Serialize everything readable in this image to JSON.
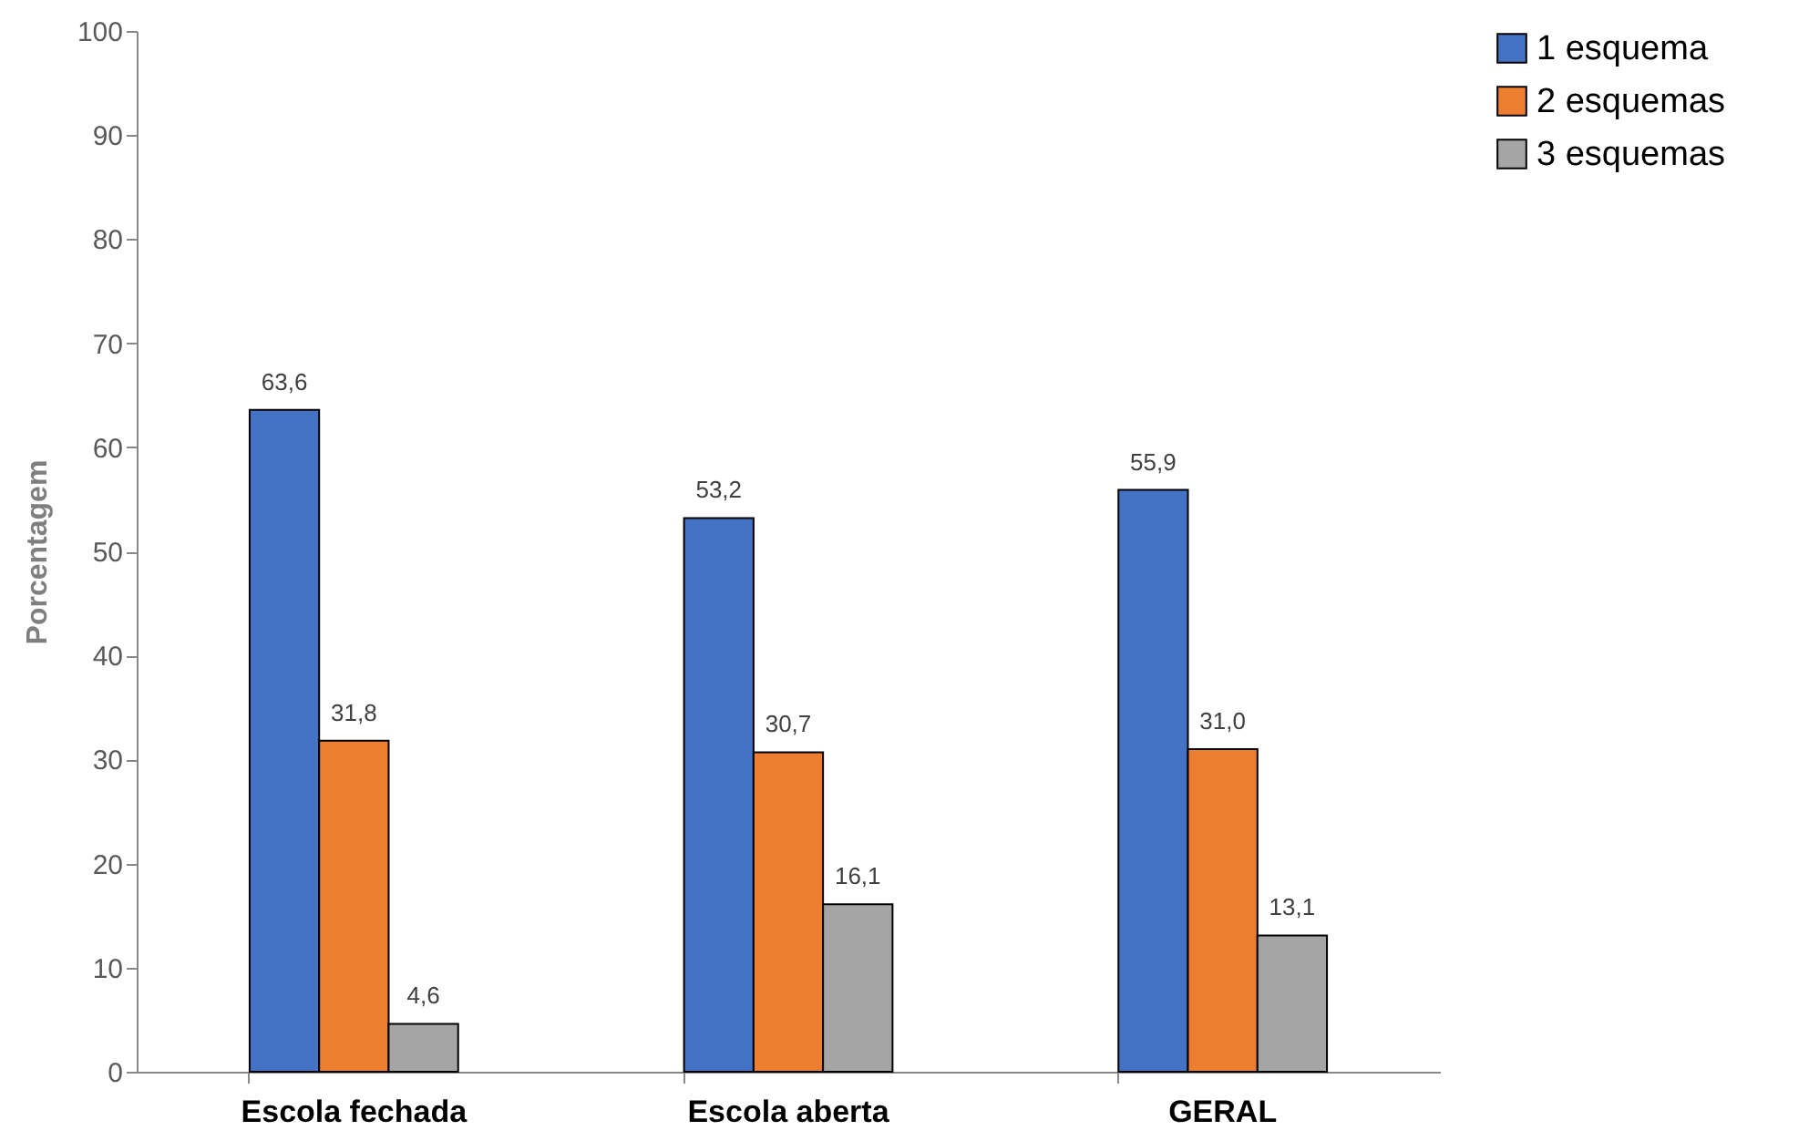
{
  "chart_data": {
    "type": "bar",
    "ylabel": "Porcentagem",
    "categories": [
      "Escola fechada",
      "Escola aberta",
      "GERAL"
    ],
    "series": [
      {
        "name": "1 esquema",
        "color": "#4472c4",
        "values": [
          63.6,
          53.2,
          55.9
        ],
        "value_labels": [
          "63,6",
          "53,2",
          "55,9"
        ]
      },
      {
        "name": "2 esquemas",
        "color": "#ed7d31",
        "values": [
          31.8,
          30.7,
          31.0
        ],
        "value_labels": [
          "31,8",
          "30,7",
          "31,0"
        ]
      },
      {
        "name": "3 esquemas",
        "color": "#a5a5a5",
        "values": [
          4.6,
          16.1,
          13.1
        ],
        "value_labels": [
          "4,6",
          "16,1",
          "13,1"
        ]
      }
    ],
    "ylim": [
      0,
      100
    ],
    "yticks": [
      0,
      10,
      20,
      30,
      40,
      50,
      60,
      70,
      80,
      90,
      100
    ],
    "grid": false,
    "legend": "right"
  }
}
